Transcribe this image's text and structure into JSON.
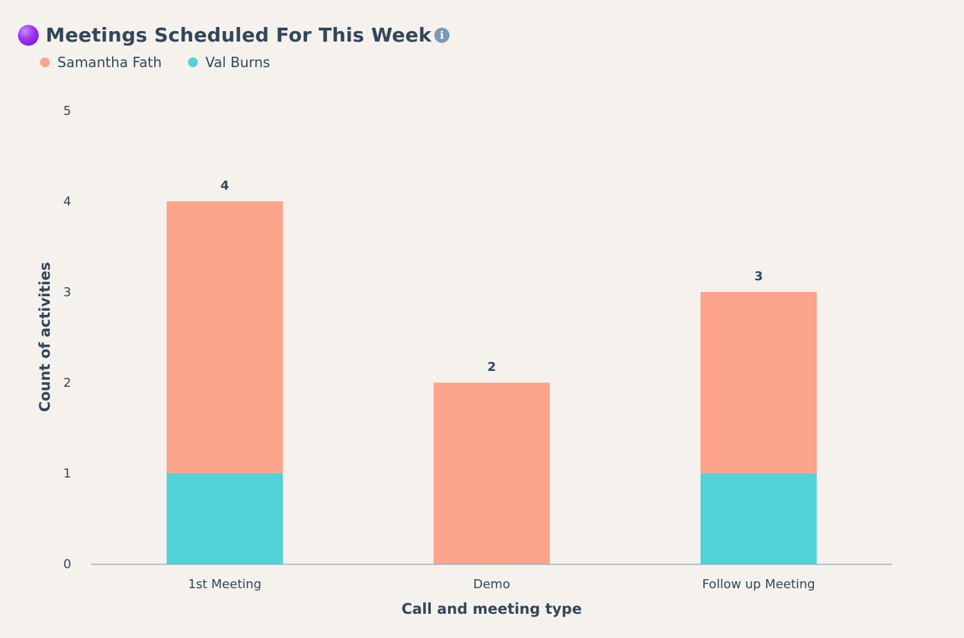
{
  "header": {
    "title": "Meetings Scheduled For This Week",
    "info_icon": "info-icon",
    "status_icon": "purple-circle-icon"
  },
  "colors": {
    "samantha": "#fca58c",
    "val": "#51d3d9",
    "text": "#33475b",
    "axis": "#99afc4",
    "background": "#f5f1ec"
  },
  "chart_data": {
    "type": "bar",
    "stacked": true,
    "title": "Meetings Scheduled For This Week",
    "xlabel": "Call and meeting type",
    "ylabel": "Count of activities",
    "categories": [
      "1st Meeting",
      "Demo",
      "Follow up Meeting"
    ],
    "series": [
      {
        "name": "Val Burns",
        "color": "#51d3d9",
        "values": [
          1,
          0,
          1
        ]
      },
      {
        "name": "Samantha Fath",
        "color": "#fca58c",
        "values": [
          3,
          2,
          2
        ]
      }
    ],
    "totals": [
      "4",
      "2",
      "3"
    ],
    "legend_order": [
      "Samantha Fath",
      "Val Burns"
    ],
    "legend_position": "top-left",
    "yticks": [
      "0",
      "1",
      "2",
      "3",
      "4",
      "5"
    ],
    "ylim": [
      0,
      5
    ],
    "grid": false
  }
}
